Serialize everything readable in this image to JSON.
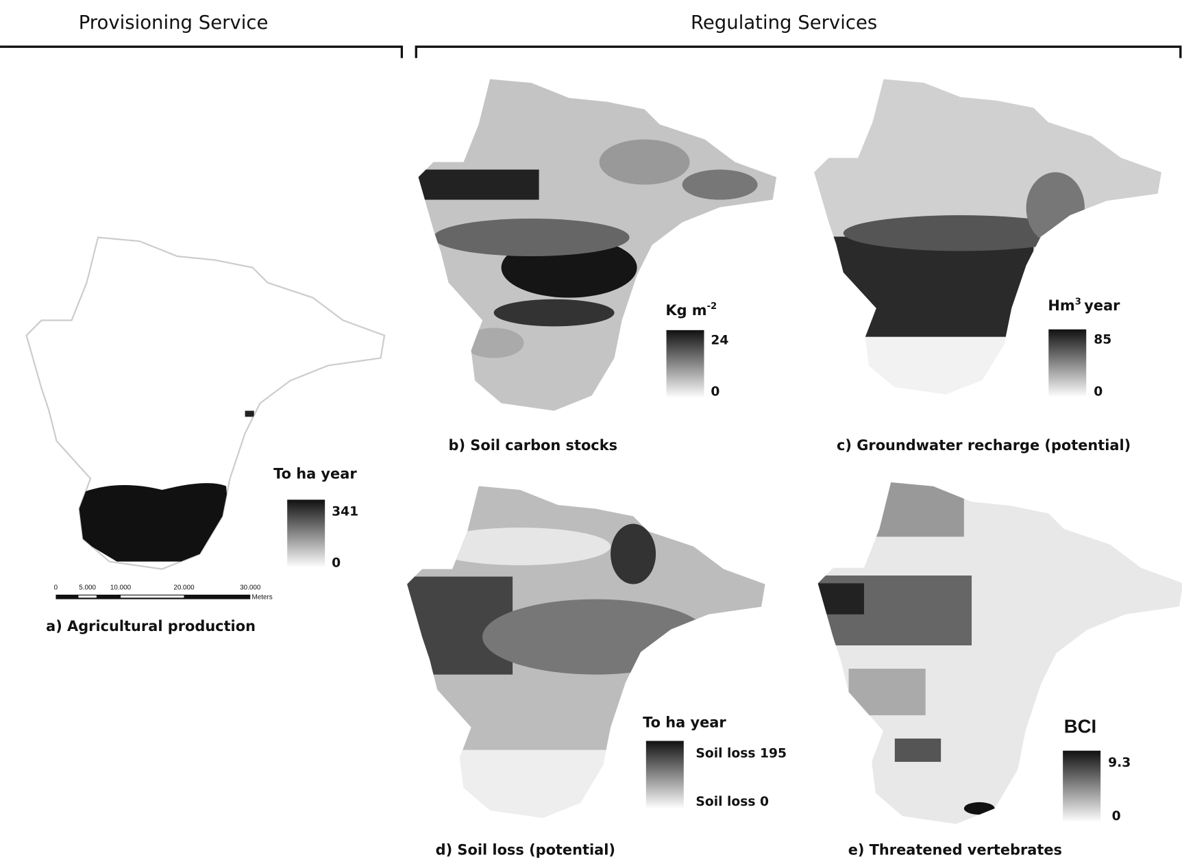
{
  "headers": {
    "provisioning": "Provisioning Service",
    "regulating": "Regulating Services"
  },
  "panels": [
    {
      "caption": "a) Agricultural production",
      "legend": {
        "unit": {
          "base": "To ha year"
        },
        "max": "341",
        "min": "0"
      }
    },
    {
      "caption": "b)  Soil carbon stocks",
      "legend": {
        "unit": {
          "base": "Kg m",
          "sup": "-2"
        },
        "max": "24",
        "min": "0"
      }
    },
    {
      "caption": "c) Groundwater recharge (potential)",
      "legend": {
        "unit": {
          "base": "Hm",
          "sup": "3",
          "tail": "year"
        },
        "max": "85",
        "min": "0"
      }
    },
    {
      "caption": "d) Soil loss (potential)",
      "legend": {
        "unit": {
          "base": "To ha year"
        },
        "max": "Soil loss 195",
        "min": "Soil loss 0"
      }
    },
    {
      "caption": "e) Threatened vertebrates",
      "legend": {
        "unit": {
          "base": "BCI"
        },
        "max": "9.3",
        "min": "0"
      }
    }
  ],
  "scale_bar": {
    "labels": [
      "0",
      "5.000",
      "10.000",
      "20.000",
      "30.000"
    ],
    "unit": "Meters"
  }
}
